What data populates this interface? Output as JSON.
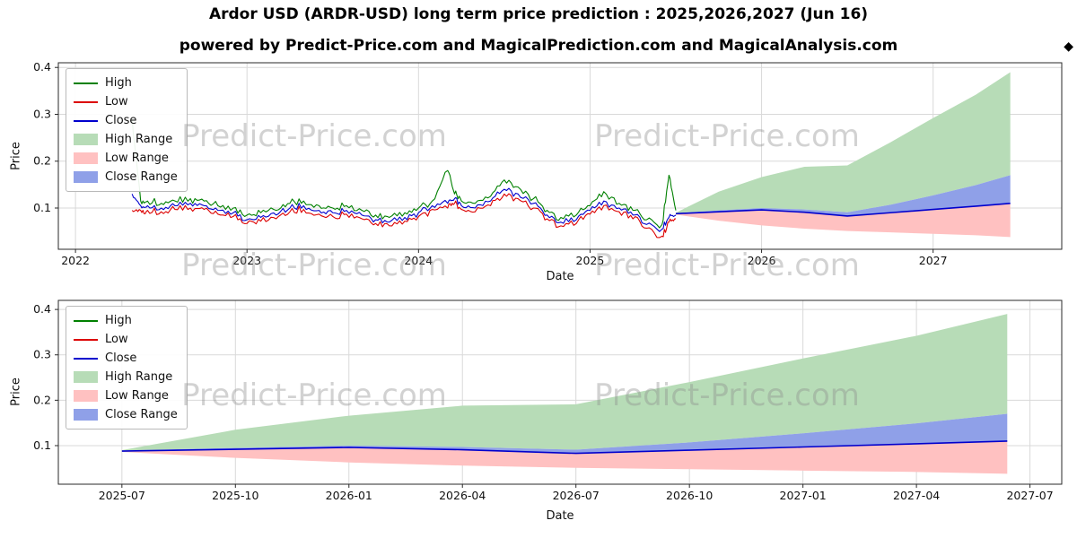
{
  "page": {
    "title": "Ardor USD (ARDR-USD) long term price prediction : 2025,2026,2027 (Jun 16)",
    "subtitle": "powered by Predict-Price.com and MagicalPrediction.com and MagicalAnalysis.com",
    "diamond": "◆",
    "watermark_text": "Predict-Price.com"
  },
  "colors": {
    "high_line": "#008000",
    "low_line": "#dc0000",
    "close_line": "#0000cd",
    "high_range": "#b7dcb7",
    "low_range": "#ffc1c1",
    "close_range": "#8fa0e8",
    "grid": "#d9d9d9",
    "spine": "#2a2a2a",
    "tick_text": "#111111"
  },
  "legend": {
    "items": [
      {
        "label": "High",
        "swatch": "line",
        "color_key": "high_line"
      },
      {
        "label": "Low",
        "swatch": "line",
        "color_key": "low_line"
      },
      {
        "label": "Close",
        "swatch": "line",
        "color_key": "close_line"
      },
      {
        "label": "High Range",
        "swatch": "patch",
        "color_key": "high_range"
      },
      {
        "label": "Low Range",
        "swatch": "patch",
        "color_key": "low_range"
      },
      {
        "label": "Close Range",
        "swatch": "patch",
        "color_key": "close_range"
      }
    ]
  },
  "chart_data": [
    {
      "type": "line",
      "xlabel": "Date",
      "ylabel": "Price",
      "xlim": [
        2021.9,
        2027.75
      ],
      "ylim": [
        0.012,
        0.41
      ],
      "xticks": {
        "values": [
          2022,
          2023,
          2024,
          2025,
          2026,
          2027
        ],
        "labels": [
          "2022",
          "2023",
          "2024",
          "2025",
          "2026",
          "2027"
        ]
      },
      "yticks": {
        "values": [
          0.1,
          0.2,
          0.3,
          0.4
        ],
        "labels": [
          "0.1",
          "0.2",
          "0.3",
          "0.4"
        ]
      },
      "historical": {
        "t": [
          2022.33,
          2022.38,
          2022.42,
          2022.5,
          2022.58,
          2022.67,
          2022.75,
          2022.83,
          2022.92,
          2023.0,
          2023.08,
          2023.17,
          2023.25,
          2023.33,
          2023.42,
          2023.5,
          2023.58,
          2023.67,
          2023.75,
          2023.83,
          2023.92,
          2024.0,
          2024.08,
          2024.17,
          2024.21,
          2024.25,
          2024.33,
          2024.42,
          2024.5,
          2024.58,
          2024.67,
          2024.75,
          2024.83,
          2024.92,
          2025.0,
          2025.08,
          2025.17,
          2025.25,
          2025.33,
          2025.42,
          2025.46,
          2025.5
        ],
        "close": [
          0.13,
          0.105,
          0.105,
          0.1,
          0.105,
          0.11,
          0.105,
          0.095,
          0.09,
          0.075,
          0.08,
          0.085,
          0.1,
          0.105,
          0.095,
          0.09,
          0.095,
          0.085,
          0.075,
          0.07,
          0.08,
          0.09,
          0.105,
          0.11,
          0.12,
          0.105,
          0.1,
          0.115,
          0.14,
          0.13,
          0.11,
          0.085,
          0.07,
          0.075,
          0.095,
          0.115,
          0.1,
          0.085,
          0.065,
          0.055,
          0.08,
          0.085
        ],
        "high": [
          0.29,
          0.115,
          0.115,
          0.11,
          0.115,
          0.12,
          0.115,
          0.105,
          0.1,
          0.085,
          0.09,
          0.095,
          0.11,
          0.115,
          0.105,
          0.1,
          0.105,
          0.095,
          0.085,
          0.08,
          0.09,
          0.1,
          0.115,
          0.18,
          0.13,
          0.115,
          0.11,
          0.125,
          0.16,
          0.145,
          0.12,
          0.095,
          0.08,
          0.085,
          0.105,
          0.135,
          0.11,
          0.095,
          0.075,
          0.065,
          0.17,
          0.095
        ],
        "low": [
          0.095,
          0.095,
          0.095,
          0.092,
          0.097,
          0.1,
          0.097,
          0.087,
          0.082,
          0.067,
          0.072,
          0.077,
          0.092,
          0.097,
          0.087,
          0.082,
          0.087,
          0.077,
          0.067,
          0.062,
          0.072,
          0.082,
          0.097,
          0.1,
          0.11,
          0.097,
          0.092,
          0.105,
          0.13,
          0.12,
          0.1,
          0.077,
          0.062,
          0.067,
          0.087,
          0.105,
          0.092,
          0.077,
          0.057,
          0.04,
          0.07,
          0.077
        ]
      },
      "prediction": {
        "t": [
          2025.5,
          2025.75,
          2026.0,
          2026.25,
          2026.5,
          2026.75,
          2027.0,
          2027.25,
          2027.45
        ],
        "close": [
          0.088,
          0.092,
          0.096,
          0.091,
          0.083,
          0.09,
          0.097,
          0.104,
          0.11
        ],
        "close_top": [
          0.089,
          0.095,
          0.1,
          0.097,
          0.091,
          0.107,
          0.127,
          0.149,
          0.17
        ],
        "high_top": [
          0.09,
          0.135,
          0.166,
          0.188,
          0.191,
          0.24,
          0.292,
          0.342,
          0.39
        ],
        "low_bottom": [
          0.086,
          0.073,
          0.063,
          0.056,
          0.051,
          0.048,
          0.045,
          0.042,
          0.038
        ]
      }
    },
    {
      "type": "area",
      "xlabel": "Date",
      "ylabel": "Price",
      "xlim": [
        2025.36,
        2027.57
      ],
      "ylim": [
        0.015,
        0.42
      ],
      "xticks": {
        "values": [
          2025.5,
          2025.75,
          2026.0,
          2026.25,
          2026.5,
          2026.75,
          2027.0,
          2027.25,
          2027.5
        ],
        "labels": [
          "2025-07",
          "2025-10",
          "2026-01",
          "2026-04",
          "2026-07",
          "2026-10",
          "2027-01",
          "2027-04",
          "2027-07"
        ]
      },
      "yticks": {
        "values": [
          0.1,
          0.2,
          0.3,
          0.4
        ],
        "labels": [
          "0.1",
          "0.2",
          "0.3",
          "0.4"
        ]
      },
      "prediction": {
        "t": [
          2025.5,
          2025.75,
          2026.0,
          2026.25,
          2026.5,
          2026.75,
          2027.0,
          2027.25,
          2027.45
        ],
        "close": [
          0.088,
          0.092,
          0.096,
          0.091,
          0.083,
          0.09,
          0.097,
          0.104,
          0.11
        ],
        "close_top": [
          0.089,
          0.095,
          0.1,
          0.097,
          0.091,
          0.107,
          0.127,
          0.149,
          0.17
        ],
        "high_top": [
          0.09,
          0.135,
          0.166,
          0.188,
          0.191,
          0.24,
          0.292,
          0.342,
          0.39
        ],
        "low_bottom": [
          0.086,
          0.073,
          0.063,
          0.056,
          0.051,
          0.048,
          0.045,
          0.042,
          0.038
        ]
      }
    }
  ]
}
